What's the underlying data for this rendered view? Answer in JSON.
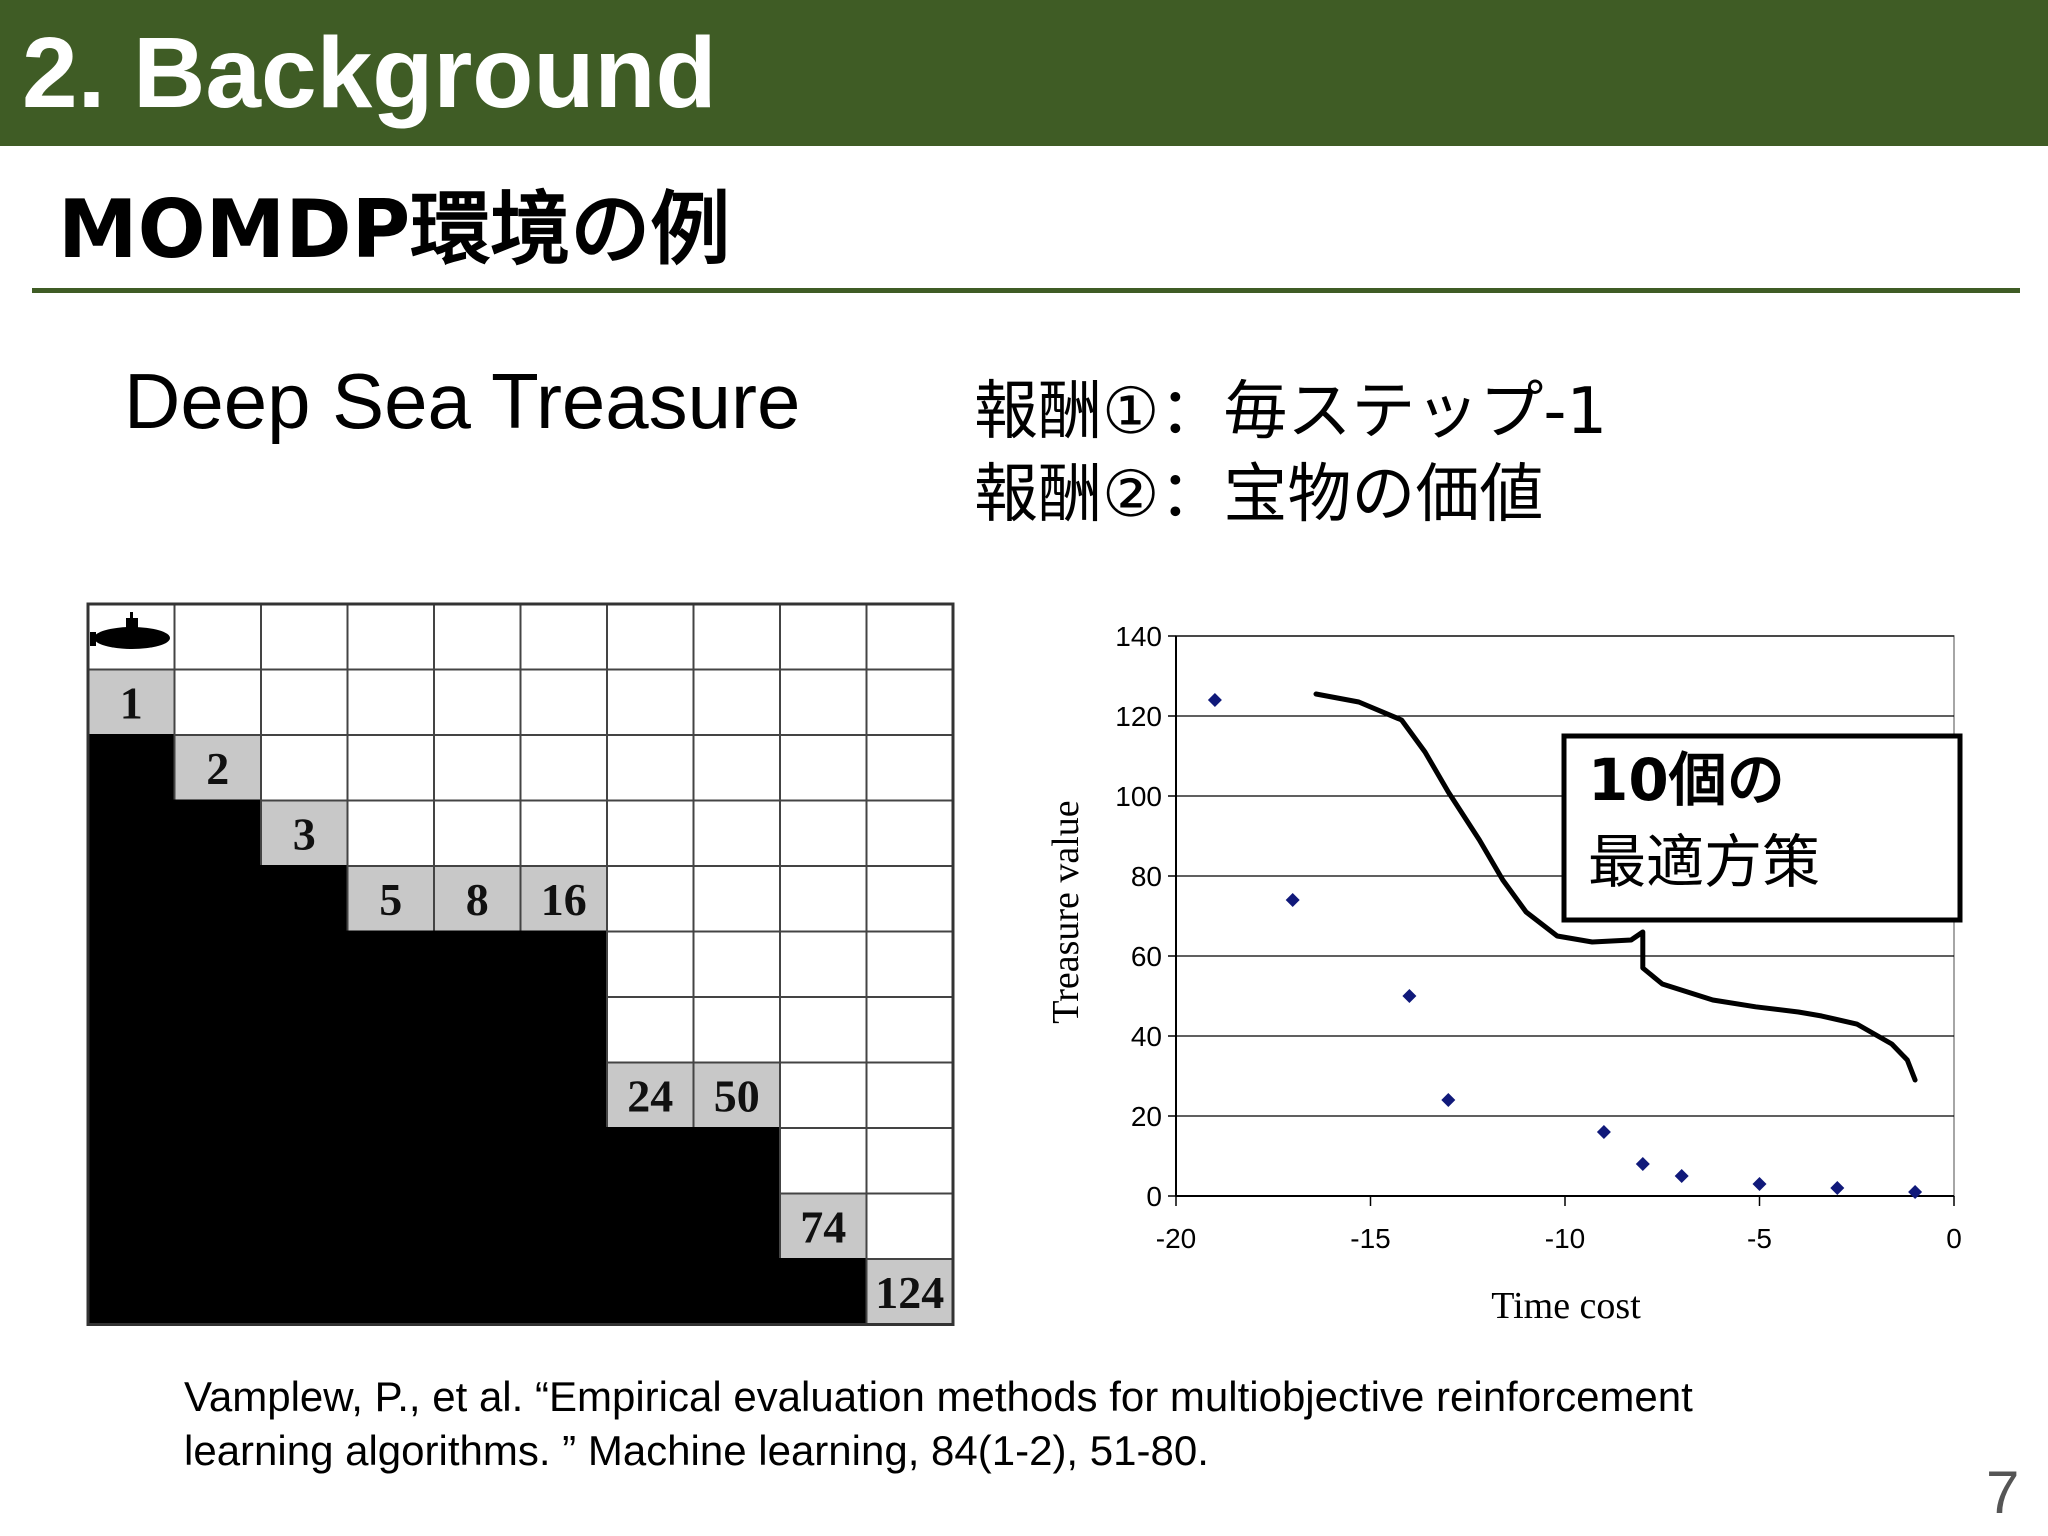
{
  "slide": {
    "header_title": "2. Background",
    "subtitle": "MOMDP環境の例",
    "dst_title": "Deep Sea Treasure",
    "reward1": "報酬①：毎ステップ-1",
    "reward2": "報酬②：宝物の価値",
    "citation_line1": "Vamplew, P., et al.  “Empirical evaluation methods for multiobjective reinforcement",
    "citation_line2": "learning algorithms. ” Machine learning, 84(1-2), 51-80.",
    "page_number": "7"
  },
  "grid": {
    "cols": 10,
    "rows": 11,
    "treasures": [
      {
        "col": 0,
        "row": 1,
        "value": "1"
      },
      {
        "col": 1,
        "row": 2,
        "value": "2"
      },
      {
        "col": 2,
        "row": 3,
        "value": "3"
      },
      {
        "col": 3,
        "row": 4,
        "value": "5"
      },
      {
        "col": 4,
        "row": 4,
        "value": "8"
      },
      {
        "col": 5,
        "row": 4,
        "value": "16"
      },
      {
        "col": 6,
        "row": 7,
        "value": "24"
      },
      {
        "col": 7,
        "row": 7,
        "value": "50"
      },
      {
        "col": 8,
        "row": 9,
        "value": "74"
      },
      {
        "col": 9,
        "row": 10,
        "value": "124"
      }
    ],
    "submarine_icon": "submarine-icon",
    "colors": {
      "sea": "#ffffff",
      "seabed": "#000000",
      "treasure": "#c8c8c8"
    }
  },
  "chart_data": {
    "type": "scatter",
    "title": "",
    "xlabel": "Time cost",
    "ylabel": "Treasure value",
    "xlim": [
      -20,
      0
    ],
    "ylim": [
      0,
      140
    ],
    "x_ticks": [
      "-20",
      "-15",
      "-10",
      "-5",
      "0"
    ],
    "y_ticks": [
      "0",
      "20",
      "40",
      "60",
      "80",
      "100",
      "120",
      "140"
    ],
    "grid": true,
    "points": [
      {
        "x": -19,
        "y": 124
      },
      {
        "x": -17,
        "y": 74
      },
      {
        "x": -14,
        "y": 50
      },
      {
        "x": -13,
        "y": 24
      },
      {
        "x": -9,
        "y": 16
      },
      {
        "x": -8,
        "y": 8
      },
      {
        "x": -7,
        "y": 5
      },
      {
        "x": -5,
        "y": 3
      },
      {
        "x": -3,
        "y": 2
      },
      {
        "x": -1,
        "y": 1
      }
    ],
    "point_color": "#10197a",
    "annotation_line1": "10個の",
    "annotation_line2": "最適方策"
  }
}
